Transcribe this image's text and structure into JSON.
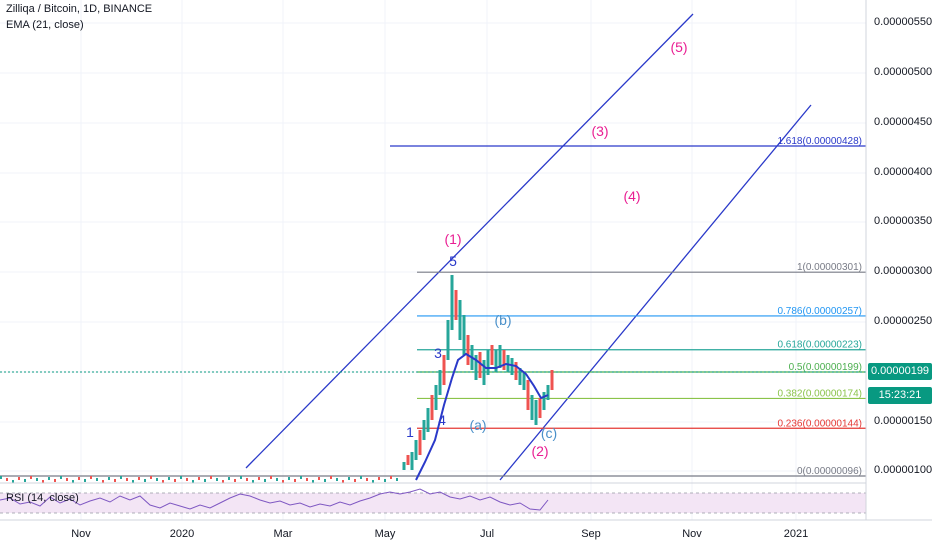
{
  "header": {
    "symbol": "Zilliqa / Bitcoin, 1D, BINANCE",
    "indicator": "EMA (21, close)"
  },
  "price_axis": {
    "ticks": [
      "0.00000550",
      "0.00000500",
      "0.00000450",
      "0.00000400",
      "0.00000350",
      "0.00000300",
      "0.00000250",
      "0.00000200",
      "0.00000150",
      "0.00000100"
    ],
    "current_price": "0.00000199",
    "countdown": "15:23:21"
  },
  "time_axis": {
    "labels": [
      "Nov",
      "2020",
      "Mar",
      "May",
      "Jul",
      "Sep",
      "Nov",
      "2021"
    ]
  },
  "fibonacci": [
    {
      "label": "1.618(0.00000428)",
      "price": 4.28e-06,
      "color": "#2a39c9"
    },
    {
      "label": "1(0.00000301)",
      "price": 3.01e-06,
      "color": "#787b86"
    },
    {
      "label": "0.786(0.00000257)",
      "price": 2.57e-06,
      "color": "#2196f3"
    },
    {
      "label": "0.618(0.00000223)",
      "price": 2.23e-06,
      "color": "#26a69a"
    },
    {
      "label": "0.5(0.00000199)",
      "price": 1.99e-06,
      "color": "#4caf50"
    },
    {
      "label": "0.382(0.00000174)",
      "price": 1.74e-06,
      "color": "#8bc34a"
    },
    {
      "label": "0.236(0.00000144)",
      "price": 1.44e-06,
      "color": "#e53935"
    },
    {
      "label": "0(0.00000096)",
      "price": 9.6e-07,
      "color": "#787b86"
    }
  ],
  "wave_labels": [
    {
      "text": "(5)",
      "color": "#e91e93"
    },
    {
      "text": "(3)",
      "color": "#e91e93"
    },
    {
      "text": "(4)",
      "color": "#e91e93"
    },
    {
      "text": "(1)",
      "color": "#e91e93"
    },
    {
      "text": "5",
      "color": "#2a39c9"
    },
    {
      "text": "3",
      "color": "#2a39c9"
    },
    {
      "text": "4",
      "color": "#2a39c9"
    },
    {
      "text": "1",
      "color": "#2a39c9"
    },
    {
      "text": "(b)",
      "color": "#4a90c9"
    },
    {
      "text": "(a)",
      "color": "#4a90c9"
    },
    {
      "text": "(c)",
      "color": "#4a90c9"
    },
    {
      "text": "(2)",
      "color": "#e91e93"
    }
  ],
  "rsi": {
    "label": "RSI (14, close)"
  },
  "colors": {
    "channel": "#2a39c9",
    "ema": "#2a39c9",
    "current_line": "#089981",
    "rsi_fill": "#f3e5f5",
    "rsi_line": "#7e57c2"
  }
}
